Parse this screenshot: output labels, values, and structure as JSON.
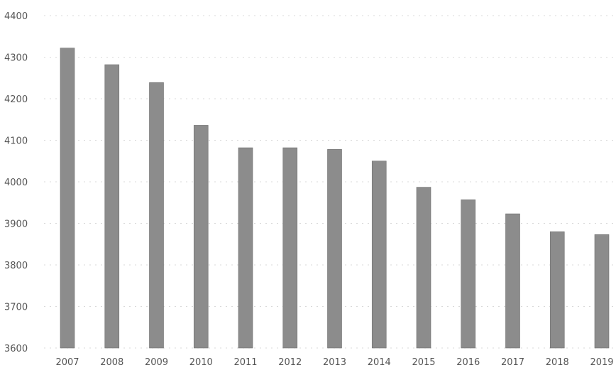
{
  "chart_data": {
    "type": "bar",
    "title": "",
    "xlabel": "",
    "ylabel": "",
    "categories": [
      "2007",
      "2008",
      "2009",
      "2010",
      "2011",
      "2012",
      "2013",
      "2014",
      "2015",
      "2016",
      "2017",
      "2018",
      "2019"
    ],
    "values": [
      4322,
      4282,
      4239,
      4136,
      4082,
      4082,
      4078,
      4050,
      3987,
      3957,
      3923,
      3880,
      3873
    ],
    "ylim": [
      3600,
      4400
    ],
    "yticks": [
      "3600",
      "3700",
      "3800",
      "3900",
      "4000",
      "4100",
      "4200",
      "4300",
      "4400"
    ],
    "grid": true,
    "legend": "none",
    "bar_color": "#8c8c8c",
    "grid_color": "#d9d9d9",
    "text_color": "#555555"
  }
}
